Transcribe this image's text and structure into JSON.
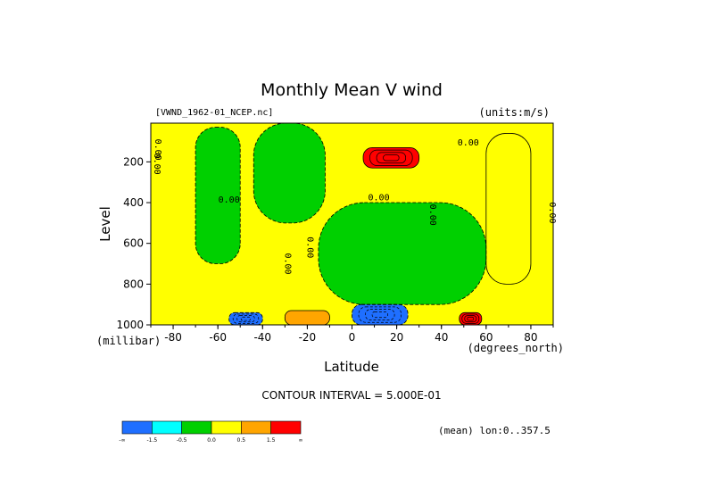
{
  "chart_data": {
    "type": "heatmap",
    "title": "Monthly Mean V wind",
    "dataset_label": "[VWND_1962-01_NCEP.nc]",
    "units_label": "(units:m/s)",
    "xlabel": "Latitude",
    "xunits": "(degrees_north)",
    "ylabel": "Level",
    "yunits": "(millibar)",
    "contour_interval_text": "CONTOUR INTERVAL = 5.000E-01",
    "mean_info": "(mean) lon:0..357.5",
    "x_ticks": [
      "-80",
      "-60",
      "-40",
      "-20",
      "0",
      "20",
      "40",
      "60",
      "80"
    ],
    "x_tick_values": [
      -80,
      -60,
      -40,
      -20,
      0,
      20,
      40,
      60,
      80
    ],
    "y_ticks": [
      "200",
      "400",
      "600",
      "800",
      "1000"
    ],
    "y_tick_values": [
      200,
      400,
      600,
      800,
      1000
    ],
    "xlim": [
      -90,
      90
    ],
    "ylim": [
      1000,
      10
    ],
    "contour_labels": [
      "0.00",
      "0.00",
      "0.00",
      "0.00",
      "0.00",
      "0.00",
      "0.00",
      "0.00",
      "0.00"
    ],
    "colorbar": {
      "tick_labels": [
        "-∞",
        "-1.5",
        "-0.5",
        "0.0",
        "0.5",
        "1.5",
        "∞"
      ],
      "bins": [
        {
          "range": "< -1.5",
          "color": "#1f6fff"
        },
        {
          "range": "-1.5 to -0.5",
          "color": "#00ffff"
        },
        {
          "range": "-0.5 to 0.0",
          "color": "#00d000"
        },
        {
          "range": "0.0 to 0.5",
          "color": "#ffff00"
        },
        {
          "range": "0.5 to 1.5",
          "color": "#ffa500"
        },
        {
          "range": "> 1.5",
          "color": "#ff0000"
        }
      ]
    },
    "regions": [
      {
        "lat": [
          -90,
          90
        ],
        "lev": [
          10,
          1000
        ],
        "value": 0.25,
        "desc": "background weak positive"
      },
      {
        "lat": [
          -70,
          -50
        ],
        "lev": [
          30,
          700
        ],
        "value": -0.25,
        "desc": "southern midlatitude weak negative"
      },
      {
        "lat": [
          -44,
          -12
        ],
        "lev": [
          10,
          500
        ],
        "value": -0.25,
        "desc": "southern subtropics weak negative"
      },
      {
        "lat": [
          -15,
          60
        ],
        "lev": [
          400,
          900
        ],
        "value": -0.25,
        "desc": "tropical mid-troposphere weak negative"
      },
      {
        "lat": [
          5,
          30
        ],
        "lev": [
          130,
          230
        ],
        "value": 1.6,
        "desc": "upper tropospheric maximum"
      },
      {
        "lat": [
          0,
          25
        ],
        "lev": [
          900,
          1000
        ],
        "value": -1.6,
        "desc": "tropical surface minimum"
      },
      {
        "lat": [
          -55,
          -40
        ],
        "lev": [
          940,
          1000
        ],
        "value": -1.6,
        "desc": "southern surface minimum"
      },
      {
        "lat": [
          48,
          58
        ],
        "lev": [
          940,
          1000
        ],
        "value": 1.6,
        "desc": "northern surface maximum"
      },
      {
        "lat": [
          -30,
          -10
        ],
        "lev": [
          930,
          1000
        ],
        "value": 0.8,
        "desc": "subtropical surface positive"
      },
      {
        "lat": [
          60,
          80
        ],
        "lev": [
          60,
          800
        ],
        "value": 0.25,
        "desc": "polar weak positive"
      }
    ]
  }
}
